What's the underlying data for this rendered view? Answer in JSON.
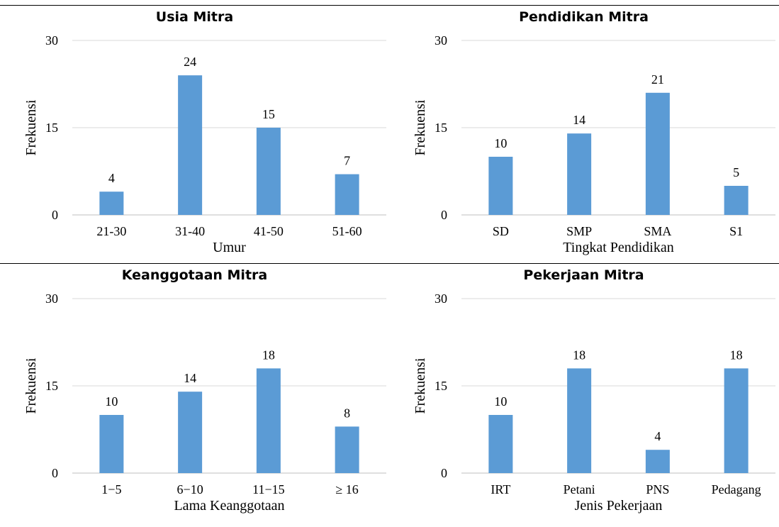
{
  "chart_data": [
    {
      "type": "bar",
      "title": "Usia Mitra",
      "categories": [
        "21-30",
        "31-40",
        "41-50",
        "51-60"
      ],
      "values": [
        4,
        24,
        15,
        7
      ],
      "xlabel": "Umur",
      "ylabel": "Frekuensi",
      "ylim": [
        0,
        30
      ],
      "yticks": [
        "0",
        "15",
        "30"
      ],
      "data_labels": [
        "4",
        "24",
        "15",
        "7"
      ],
      "bar_color": "#5b9bd5",
      "grid": true,
      "legend": "none"
    },
    {
      "type": "bar",
      "title": "Pendidikan Mitra",
      "categories": [
        "SD",
        "SMP",
        "SMA",
        "S1"
      ],
      "values": [
        10,
        14,
        21,
        5
      ],
      "xlabel": "Tingkat Pendidikan",
      "ylabel": "Frekuensi",
      "ylim": [
        0,
        30
      ],
      "yticks": [
        "0",
        "15",
        "30"
      ],
      "data_labels": [
        "10",
        "14",
        "21",
        "5"
      ],
      "bar_color": "#5b9bd5",
      "grid": true,
      "legend": "none"
    },
    {
      "type": "bar",
      "title": "Keanggotaan Mitra",
      "categories": [
        "1−5",
        "6−10",
        "11−15",
        "≥ 16"
      ],
      "values": [
        10,
        14,
        18,
        8
      ],
      "xlabel": "Lama Keanggotaan",
      "ylabel": "Frekuensi",
      "ylim": [
        0,
        30
      ],
      "yticks": [
        "0",
        "15",
        "30"
      ],
      "data_labels": [
        "10",
        "14",
        "18",
        "8"
      ],
      "bar_color": "#5b9bd5",
      "grid": true,
      "legend": "none"
    },
    {
      "type": "bar",
      "title": "Pekerjaan Mitra",
      "categories": [
        "IRT",
        "Petani",
        "PNS",
        "Pedagang"
      ],
      "values": [
        10,
        18,
        4,
        18
      ],
      "xlabel": "Jenis Pekerjaan",
      "ylabel": "Frekuensi",
      "ylim": [
        0,
        30
      ],
      "yticks": [
        "0",
        "15",
        "30"
      ],
      "data_labels": [
        "10",
        "18",
        "4",
        "18"
      ],
      "bar_color": "#5b9bd5",
      "grid": true,
      "legend": "none"
    }
  ]
}
